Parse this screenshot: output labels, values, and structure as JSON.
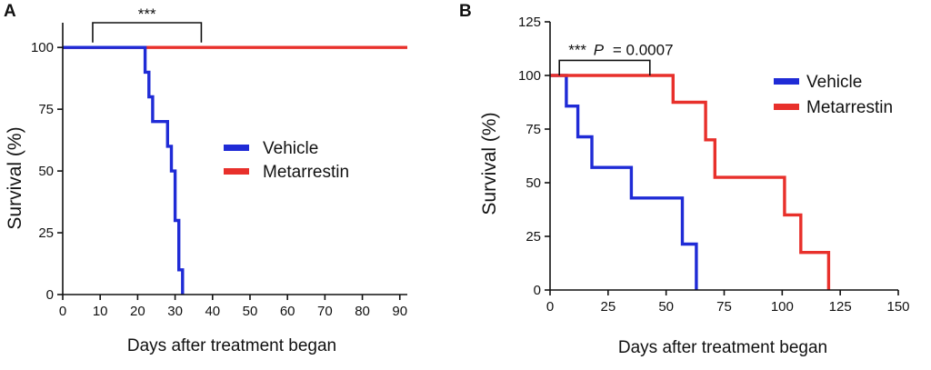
{
  "chart_data": [
    {
      "panel": "A",
      "type": "line",
      "step": true,
      "xlabel": "Days after treatment began",
      "ylabel": "Survival (%)",
      "xlim": [
        0,
        92
      ],
      "ylim": [
        0,
        110
      ],
      "xticks": [
        0,
        10,
        20,
        30,
        40,
        50,
        60,
        70,
        80,
        90
      ],
      "yticks": [
        0,
        25,
        50,
        75,
        100
      ],
      "legend": "center-right",
      "grid": false,
      "series": [
        {
          "name": "Vehicle",
          "color": "#1f2bd6",
          "x": [
            0,
            22,
            22,
            23,
            23,
            24,
            24,
            25,
            25,
            28,
            28,
            29,
            29,
            30,
            30,
            31,
            31,
            32,
            32
          ],
          "y": [
            100,
            100,
            90,
            90,
            80,
            80,
            70,
            70,
            70,
            70,
            60,
            60,
            50,
            50,
            30,
            30,
            10,
            10,
            0
          ]
        },
        {
          "name": "Metarrestin",
          "color": "#e8302b",
          "x": [
            0,
            92
          ],
          "y": [
            100,
            100
          ]
        }
      ],
      "annotation": {
        "text": "***",
        "x_start": 8,
        "x_end": 37,
        "y_top": 110,
        "y_bottom": 102
      }
    },
    {
      "panel": "B",
      "type": "line",
      "step": true,
      "xlabel": "Days after treatment began",
      "ylabel": "Survival (%)",
      "xlim": [
        0,
        150
      ],
      "ylim": [
        0,
        125
      ],
      "xticks": [
        0,
        25,
        50,
        75,
        100,
        125,
        150
      ],
      "yticks": [
        0,
        25,
        50,
        75,
        100,
        125
      ],
      "legend": "top-right",
      "grid": false,
      "series": [
        {
          "name": "Vehicle",
          "color": "#1f2bd6",
          "x": [
            0,
            7,
            7,
            12,
            12,
            18,
            18,
            35,
            35,
            57,
            57,
            63,
            63
          ],
          "y": [
            100,
            100,
            85.7,
            85.7,
            71.4,
            71.4,
            57.1,
            57.1,
            42.9,
            42.9,
            21.4,
            21.4,
            0
          ]
        },
        {
          "name": "Metarrestin",
          "color": "#e8302b",
          "x": [
            0,
            53,
            53,
            67,
            67,
            71,
            71,
            101,
            101,
            108,
            108,
            120,
            120
          ],
          "y": [
            100,
            100,
            87.5,
            87.5,
            70,
            70,
            52.5,
            52.5,
            35,
            35,
            17.5,
            17.5,
            0
          ]
        }
      ],
      "annotation": {
        "text_stars": "***",
        "text_p": "P",
        "text_value": "= 0.0007",
        "x_start": 4,
        "x_end": 43,
        "y_top": 107,
        "y_bottom": 100
      }
    }
  ]
}
